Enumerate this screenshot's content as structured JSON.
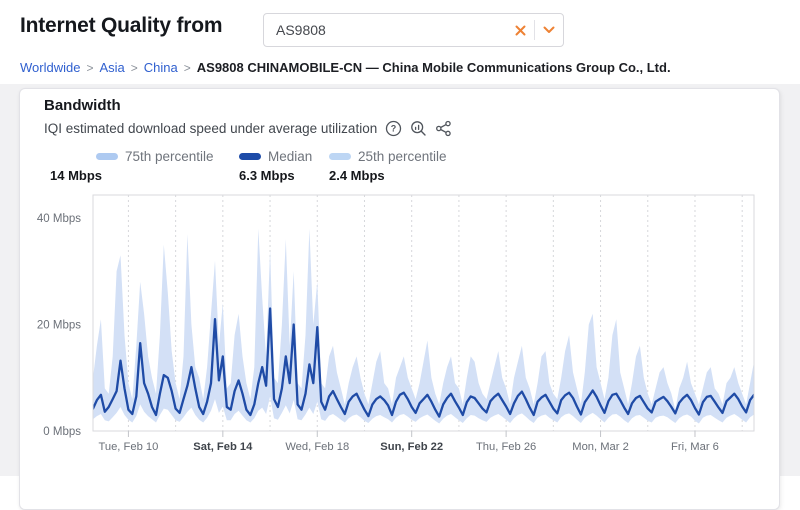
{
  "header": {
    "title": "Internet Quality from",
    "search": {
      "value": "AS9808"
    },
    "breadcrumb": {
      "separator": ">",
      "links": [
        "Worldwide",
        "Asia",
        "China"
      ],
      "current": "AS9808 CHINAMOBILE-CN — China Mobile Communications Group Co., Ltd."
    }
  },
  "card": {
    "title": "Bandwidth",
    "subtitle": "IQI estimated download speed under average utilization",
    "legend": [
      {
        "label": "75th percentile",
        "value": "14 Mbps",
        "color": "#aecaf1"
      },
      {
        "label": "Median",
        "value": "6.3 Mbps",
        "color": "#1d4ba8"
      },
      {
        "label": "25th percentile",
        "value": "2.4 Mbps",
        "color": "#bdd6f4"
      }
    ]
  },
  "chart_data": {
    "type": "area",
    "title": "Bandwidth — IQI estimated download speed under average utilization",
    "ylabel": "Mbps",
    "ylim": [
      0,
      44
    ],
    "yticks": [
      {
        "value": 0,
        "label": "0 Mbps"
      },
      {
        "value": 20,
        "label": "20 Mbps"
      },
      {
        "value": 40,
        "label": "40 Mbps"
      }
    ],
    "x_unit": "days since Feb 8 00:00",
    "xlim": [
      0.5,
      28.5
    ],
    "x_start_day": 0.5,
    "x_step_days": 0.1666667,
    "gridline_every_days": 2,
    "xticks": [
      {
        "day": 2,
        "label": "Tue, Feb 10",
        "bold": false
      },
      {
        "day": 6,
        "label": "Sat, Feb 14",
        "bold": true
      },
      {
        "day": 10,
        "label": "Wed, Feb 18",
        "bold": false
      },
      {
        "day": 14,
        "label": "Sun, Feb 22",
        "bold": true
      },
      {
        "day": 18,
        "label": "Thu, Feb 26",
        "bold": false
      },
      {
        "day": 22,
        "label": "Mon, Mar 2",
        "bold": false
      },
      {
        "day": 26,
        "label": "Fri, Mar 6",
        "bold": false
      }
    ],
    "legend_position": "top",
    "grid": "vertical-dashed",
    "colors": {
      "band": "#d3e0f6",
      "median": "#1f4ba6",
      "frame": "#d9dadd",
      "gridline": "#d6d7db"
    },
    "series": [
      {
        "name": "Median",
        "summary_value_mbps": 6.3,
        "values": [
          4.2,
          5.8,
          6.8,
          3.6,
          4.5,
          6.0,
          7.5,
          13.2,
          8.0,
          4.0,
          3.2,
          6.5,
          16.5,
          9.0,
          7.0,
          4.5,
          3.0,
          7.0,
          10.5,
          10.0,
          7.5,
          4.2,
          3.4,
          6.0,
          8.5,
          12.0,
          8.0,
          4.5,
          3.2,
          5.5,
          9.0,
          21.0,
          9.5,
          14.0,
          4.5,
          4.0,
          7.5,
          9.5,
          7.0,
          4.0,
          3.0,
          5.0,
          9.0,
          12.0,
          8.5,
          23.0,
          6.0,
          4.5,
          8.0,
          14.0,
          9.0,
          20.0,
          5.0,
          4.0,
          7.0,
          12.5,
          9.0,
          19.5,
          5.5,
          4.0,
          6.5,
          7.5,
          6.0,
          4.5,
          3.2,
          5.5,
          6.5,
          7.0,
          5.5,
          4.0,
          2.8,
          5.0,
          6.0,
          6.5,
          5.8,
          4.8,
          3.0,
          5.5,
          6.8,
          7.2,
          6.0,
          4.5,
          3.4,
          5.2,
          6.0,
          6.8,
          5.5,
          4.0,
          2.7,
          5.0,
          6.2,
          7.0,
          5.6,
          4.4,
          3.0,
          5.4,
          6.5,
          6.2,
          5.2,
          4.2,
          3.5,
          5.6,
          6.4,
          7.0,
          5.8,
          4.6,
          3.2,
          5.2,
          6.6,
          7.4,
          6.0,
          4.4,
          3.0,
          5.5,
          6.3,
          6.8,
          5.5,
          4.2,
          3.3,
          5.8,
          6.7,
          7.2,
          6.2,
          4.6,
          3.1,
          5.4,
          6.5,
          7.6,
          6.4,
          4.8,
          3.4,
          5.6,
          6.8,
          7.0,
          5.8,
          4.4,
          3.2,
          5.2,
          6.2,
          6.6,
          5.4,
          4.2,
          3.5,
          5.5,
          6.0,
          6.4,
          5.6,
          4.5,
          3.3,
          5.3,
          6.2,
          6.8,
          5.8,
          4.3,
          3.1,
          5.4,
          6.4,
          6.6,
          5.5,
          4.4,
          3.4,
          5.6,
          6.3,
          7.0,
          6.0,
          4.6,
          3.5,
          5.8,
          6.8
        ]
      },
      {
        "name": "75th percentile",
        "summary_value_mbps": 14,
        "values": [
          10,
          16,
          21,
          8,
          7,
          14,
          30,
          33,
          18,
          9,
          6,
          16,
          28,
          22,
          14,
          10,
          7,
          18,
          35,
          26,
          15,
          9,
          6,
          14,
          37,
          20,
          12,
          10,
          6,
          12,
          22,
          32,
          16,
          24,
          8,
          9,
          18,
          22,
          14,
          9,
          6,
          12,
          38,
          25,
          14,
          34,
          10,
          9,
          20,
          36,
          16,
          30,
          9,
          8,
          18,
          38,
          20,
          28,
          9,
          8,
          14,
          16,
          11,
          8,
          5,
          9,
          12,
          14,
          10,
          7,
          5,
          9,
          13,
          15,
          9,
          8,
          5,
          10,
          12,
          14,
          10,
          8,
          6,
          9,
          13,
          17,
          10,
          7,
          5,
          9,
          12,
          14,
          9,
          8,
          5,
          10,
          14,
          13,
          9,
          7,
          6,
          9,
          12,
          15,
          10,
          8,
          5,
          10,
          13,
          16,
          10,
          8,
          5,
          9,
          14,
          15,
          9,
          7,
          6,
          10,
          15,
          18,
          11,
          8,
          5,
          11,
          20,
          22,
          12,
          9,
          6,
          10,
          18,
          21,
          11,
          8,
          5,
          9,
          14,
          16,
          10,
          7,
          5,
          8,
          11,
          12,
          9,
          7,
          4,
          8,
          10,
          13,
          9,
          7,
          5,
          8,
          11,
          12,
          8,
          7,
          5,
          9,
          10,
          12,
          9,
          7,
          5,
          9,
          13
        ]
      },
      {
        "name": "25th percentile",
        "summary_value_mbps": 2.4,
        "values": [
          2.2,
          2.8,
          3.2,
          2.0,
          1.8,
          2.6,
          3.4,
          4.5,
          3.0,
          2.1,
          1.6,
          2.8,
          5.0,
          3.6,
          2.8,
          2.2,
          1.6,
          3.0,
          4.2,
          4.0,
          3.0,
          2.0,
          1.7,
          2.6,
          3.6,
          4.4,
          3.0,
          2.1,
          1.6,
          2.5,
          3.8,
          6.0,
          3.4,
          4.6,
          2.0,
          2.0,
          3.2,
          3.8,
          2.9,
          2.0,
          1.6,
          2.4,
          3.8,
          4.4,
          3.2,
          6.5,
          2.4,
          2.1,
          3.4,
          4.8,
          3.3,
          5.8,
          2.2,
          2.0,
          3.1,
          4.4,
          3.2,
          5.5,
          2.2,
          1.9,
          2.9,
          3.2,
          2.7,
          2.1,
          1.6,
          2.4,
          2.9,
          3.1,
          2.6,
          1.9,
          1.5,
          2.3,
          2.8,
          3.0,
          2.6,
          2.2,
          1.6,
          2.5,
          3.0,
          3.2,
          2.7,
          2.1,
          1.7,
          2.4,
          2.8,
          3.1,
          2.5,
          1.9,
          1.4,
          2.3,
          2.9,
          3.2,
          2.6,
          2.0,
          1.5,
          2.4,
          3.0,
          2.9,
          2.4,
          2.0,
          1.7,
          2.5,
          2.9,
          3.2,
          2.7,
          2.1,
          1.5,
          2.4,
          3.0,
          3.3,
          2.7,
          2.0,
          1.5,
          2.5,
          2.9,
          3.1,
          2.5,
          2.0,
          1.6,
          2.6,
          3.1,
          3.3,
          2.8,
          2.1,
          1.5,
          2.5,
          3.0,
          3.4,
          2.9,
          2.2,
          1.6,
          2.5,
          3.1,
          3.2,
          2.7,
          2.0,
          1.5,
          2.4,
          2.9,
          3.0,
          2.5,
          1.9,
          1.6,
          2.5,
          2.8,
          2.9,
          2.6,
          2.0,
          1.5,
          2.4,
          2.9,
          3.1,
          2.7,
          1.9,
          1.4,
          2.5,
          2.9,
          3.0,
          2.5,
          2.0,
          1.6,
          2.5,
          2.9,
          3.2,
          2.7,
          2.1,
          1.6,
          2.6,
          3.1
        ]
      }
    ]
  }
}
